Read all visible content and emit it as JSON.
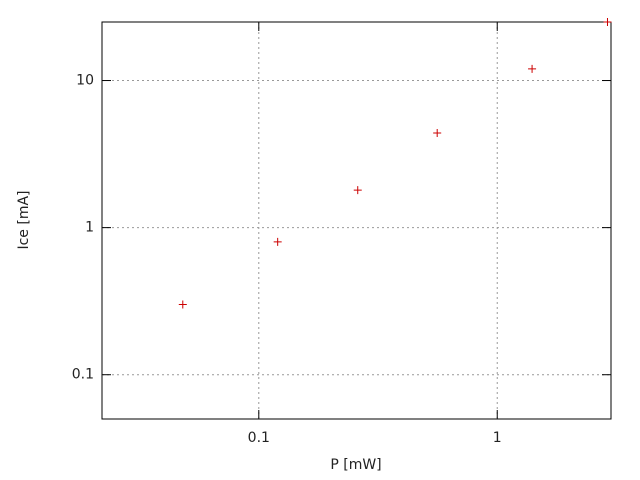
{
  "chart_data": {
    "type": "scatter",
    "x_label": "P [mW]",
    "y_label": "Ice [mA]",
    "x": [
      0.048,
      0.12,
      0.26,
      0.56,
      1.4,
      2.9
    ],
    "series": [
      {
        "color": "#cc0000",
        "values": [
          0.3,
          0.8,
          1.8,
          4.4,
          12,
          25
        ]
      }
    ],
    "xlim": [
      0.022,
      3
    ],
    "ylim": [
      0.05,
      25
    ],
    "xticks": [
      0.1,
      1
    ],
    "yticks": [
      0.1,
      1,
      10
    ],
    "x_log": true,
    "y_log": true,
    "grid": true
  }
}
